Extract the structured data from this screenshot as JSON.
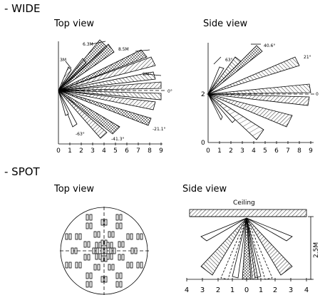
{
  "sections": {
    "wide": "- WIDE",
    "spot": "- SPOT"
  },
  "views": {
    "top": "Top view",
    "side": "Side view"
  },
  "wide_top": {
    "annotations": [
      "6.3M",
      "8.5M",
      "3M",
      "9M",
      "0°",
      "-63°",
      "-41.3°",
      "-21.1°"
    ],
    "axis_ticks": [
      "0",
      "1",
      "2",
      "3",
      "4",
      "5",
      "6",
      "7",
      "8",
      "9"
    ]
  },
  "wide_side": {
    "annotations": [
      "40.6°",
      "63°",
      "21°",
      "0"
    ],
    "y_ticks": [
      "2",
      "0"
    ],
    "axis_ticks": [
      "0",
      "1",
      "2",
      "3",
      "4",
      "5",
      "6",
      "7",
      "8",
      "9"
    ]
  },
  "spot_side": {
    "ceiling": "Ceiling",
    "height": "2.5M",
    "axis_ticks": [
      "4",
      "3",
      "2",
      "1",
      "0",
      "1",
      "2",
      "3",
      "4"
    ]
  },
  "colors": {
    "ink": "#000000",
    "background": "#ffffff"
  }
}
